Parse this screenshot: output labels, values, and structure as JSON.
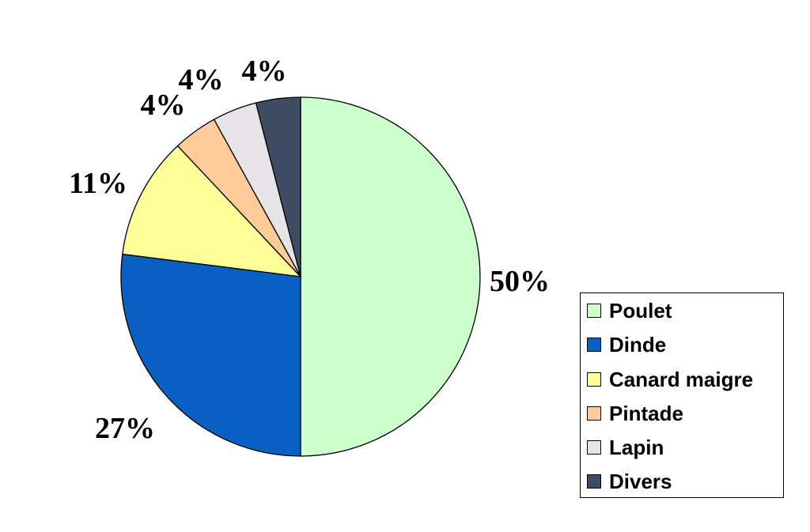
{
  "chart_data": {
    "type": "pie",
    "categories": [
      "Poulet",
      "Dinde",
      "Canard maigre",
      "Pintade",
      "Lapin",
      "Divers"
    ],
    "values": [
      50,
      27,
      11,
      4,
      4,
      4
    ],
    "labels": [
      "50%",
      "27%",
      "11%",
      "4%",
      "4%",
      "4%"
    ],
    "colors": [
      "#ccffcc",
      "#0a5fc2",
      "#ffff99",
      "#ffcc99",
      "#e6e4e6",
      "#3f4d64"
    ],
    "title": "",
    "legend": {
      "position": "right",
      "entries": [
        "Poulet",
        "Dinde",
        "Canard maigre",
        "Pintade",
        "Lapin",
        "Divers"
      ]
    },
    "start_angle": "12 o'clock",
    "direction": "clockwise"
  }
}
